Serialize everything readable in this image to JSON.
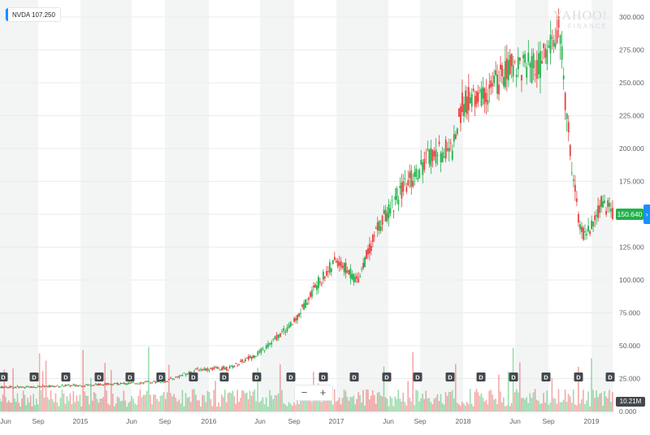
{
  "ticker_badge": {
    "symbol": "NVDA",
    "value": "107.250"
  },
  "watermark": {
    "line1": "YAHOO!",
    "line2": "FINANCE"
  },
  "price_tag": "150.640",
  "volume_tag": "10.21M",
  "zoom": {
    "out": "−",
    "in": "+"
  },
  "scroll_icon": "›",
  "colors": {
    "up": "#21b24a",
    "down": "#e8413f",
    "band": "#f3f5f5",
    "grid": "#e8ebee",
    "accent": "#1a8fff",
    "volume_label": "#43484e"
  },
  "dividend_marker_label": "D",
  "chart_data": {
    "type": "candlestick",
    "ticker": "NVDA",
    "y_axis": {
      "min": 0,
      "max": 300,
      "ticks": [
        "300.000",
        "275.000",
        "250.000",
        "225.000",
        "200.000",
        "175.000",
        "150.000",
        "125.000",
        "100.000",
        "75.000",
        "50.000",
        "25.000",
        "0.000"
      ]
    },
    "x_axis_labels": [
      "Jun",
      "Sep",
      "2015",
      "Jun",
      "Sep",
      "2016",
      "Jun",
      "Sep",
      "2017",
      "Jun",
      "Sep",
      "2018",
      "Jun",
      "Sep",
      "2019"
    ],
    "last_price": 150.64,
    "approx_price_path": [
      {
        "date": "2014-05",
        "price": 18.5
      },
      {
        "date": "2014-09",
        "price": 18.8
      },
      {
        "date": "2015-01",
        "price": 20
      },
      {
        "date": "2015-06",
        "price": 21.5
      },
      {
        "date": "2015-09",
        "price": 23
      },
      {
        "date": "2015-12",
        "price": 32
      },
      {
        "date": "2016-03",
        "price": 33
      },
      {
        "date": "2016-06",
        "price": 45
      },
      {
        "date": "2016-09",
        "price": 68
      },
      {
        "date": "2016-11",
        "price": 95
      },
      {
        "date": "2017-01",
        "price": 115
      },
      {
        "date": "2017-03",
        "price": 100
      },
      {
        "date": "2017-05",
        "price": 140
      },
      {
        "date": "2017-07",
        "price": 165
      },
      {
        "date": "2017-10",
        "price": 195
      },
      {
        "date": "2017-12",
        "price": 200
      },
      {
        "date": "2018-01",
        "price": 235
      },
      {
        "date": "2018-03",
        "price": 240
      },
      {
        "date": "2018-06",
        "price": 265
      },
      {
        "date": "2018-08",
        "price": 260
      },
      {
        "date": "2018-10",
        "price": 290
      },
      {
        "date": "2018-11",
        "price": 200
      },
      {
        "date": "2018-12",
        "price": 135
      },
      {
        "date": "2019-01",
        "price": 140
      },
      {
        "date": "2019-02",
        "price": 160
      },
      {
        "date": "2019-03",
        "price": 150.64
      }
    ]
  }
}
